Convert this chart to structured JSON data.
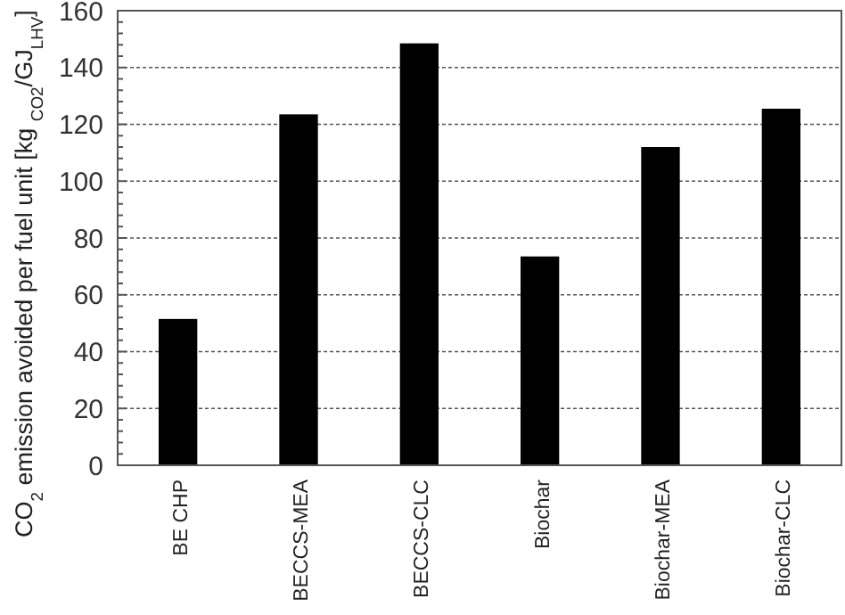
{
  "chart_data": {
    "type": "bar",
    "ylabel": "CO$_{2}$ emission avoided per fuel unit [kg $_{CO2}$/GJ$_{LHV}$]",
    "categories": [
      "BE CHP",
      "BECCS-MEA",
      "BECCS-CLC",
      "Biochar",
      "Biochar-MEA",
      "Biochar-CLC"
    ],
    "values": [
      51.5,
      123.5,
      148.5,
      73.5,
      112,
      125.5
    ],
    "color": "#000000",
    "ylim": [
      0,
      160
    ],
    "yticks": [
      0,
      {
        "value": 4,
        "label": null
      },
      {
        "value": 8,
        "label": null
      },
      {
        "value": 12,
        "label": null
      },
      {
        "value": 16,
        "label": null
      },
      20,
      {
        "value": 24,
        "label": null
      },
      {
        "value": 28,
        "label": null
      },
      {
        "value": 32,
        "label": null
      },
      {
        "value": 36,
        "label": null
      },
      40,
      {
        "value": 44,
        "label": null
      },
      {
        "value": 48,
        "label": null
      },
      {
        "value": 52,
        "label": null
      },
      {
        "value": 56,
        "label": null
      },
      60,
      {
        "value": 64,
        "label": null
      },
      {
        "value": 68,
        "label": null
      },
      {
        "value": 72,
        "label": null
      },
      {
        "value": 76,
        "label": null
      },
      80,
      {
        "value": 84,
        "label": null
      },
      {
        "value": 88,
        "label": null
      },
      {
        "value": 92,
        "label": null
      },
      {
        "value": 96,
        "label": null
      },
      100,
      {
        "value": 104,
        "label": null
      },
      {
        "value": 108,
        "label": null
      },
      {
        "value": 112,
        "label": null
      },
      {
        "value": 116,
        "label": null
      },
      120,
      {
        "value": 124,
        "label": null
      },
      {
        "value": 128,
        "label": null
      },
      {
        "value": 132,
        "label": null
      },
      {
        "value": 136,
        "label": null
      },
      140,
      {
        "value": 144,
        "label": null
      },
      {
        "value": 148,
        "label": null
      },
      {
        "value": 152,
        "label": null
      },
      {
        "value": 156,
        "label": null
      },
      160
    ],
    "grid": "y"
  }
}
